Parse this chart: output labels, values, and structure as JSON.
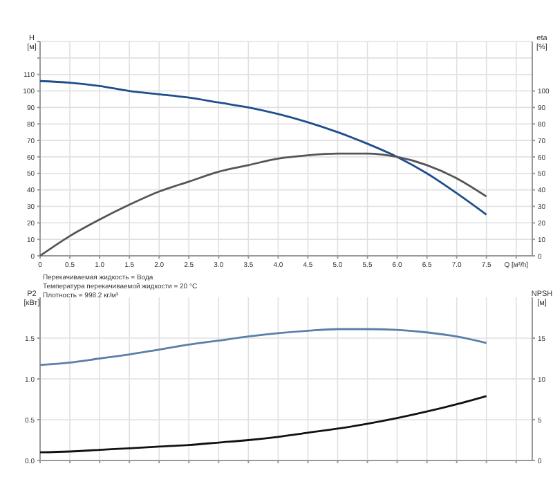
{
  "chart_data": [
    {
      "type": "line",
      "xlabel": "Q [м³/h]",
      "ylabel": "H [м]",
      "y2label": "eta [%]",
      "x": [
        0,
        0.5,
        1,
        1.5,
        2,
        2.5,
        3,
        3.5,
        4,
        4.5,
        5,
        5.5,
        6,
        6.5,
        7,
        7.5
      ],
      "xlim": [
        0,
        8.27
      ],
      "xticks": [
        0,
        {
          "value": 0.5,
          "label": "0.5"
        },
        {
          "value": 1,
          "label": "1.0"
        },
        {
          "value": 1.5,
          "label": "1.5"
        },
        {
          "value": 2,
          "label": "2.0"
        },
        {
          "value": 2.5,
          "label": "2.5"
        },
        {
          "value": 3,
          "label": "3.0"
        },
        {
          "value": 3.5,
          "label": "3.5"
        },
        {
          "value": 4,
          "label": "4.0"
        },
        {
          "value": 4.5,
          "label": "4.5"
        },
        {
          "value": 5,
          "label": "5.0"
        },
        {
          "value": 5.5,
          "label": "5.5"
        },
        {
          "value": 6,
          "label": "6.0"
        },
        {
          "value": 6.5,
          "label": "6.5"
        },
        {
          "value": 7,
          "label": "7.0"
        },
        {
          "value": 7.5,
          "label": "7.5"
        },
        {
          "value": 8,
          "label": null
        }
      ],
      "ylim": [
        0,
        130
      ],
      "yticks": [
        0,
        10,
        20,
        30,
        40,
        50,
        60,
        70,
        80,
        90,
        100,
        110,
        {
          "value": 120,
          "label": null
        },
        {
          "value": 130,
          "label": null
        }
      ],
      "y2lim": [
        0,
        130
      ],
      "y2ticks": [
        0,
        10,
        20,
        30,
        40,
        50,
        60,
        70,
        80,
        90,
        100
      ],
      "grid": true,
      "marker": "none",
      "line_style": "solid",
      "series": [
        {
          "color": "#1f4e8c",
          "values": [
            106,
            105,
            103,
            100,
            98,
            96,
            93,
            90,
            86,
            81,
            75,
            68,
            60,
            50,
            38,
            25
          ]
        },
        {
          "color": "#555555",
          "axis": "y2",
          "values": [
            0,
            12,
            22,
            31,
            39,
            45,
            51,
            55,
            59,
            61,
            62,
            62,
            60,
            55,
            47,
            36
          ]
        }
      ],
      "annotations": [
        "Перекачиваемая жидкость = Вода",
        "Температура перекачиваемой жидкости = 20 °C",
        "Плотность = 998.2 кг/м³"
      ]
    },
    {
      "type": "line",
      "ylabel": "P2 [кВт]",
      "y2label": "NPSH [м]",
      "x": [
        0,
        0.5,
        1,
        1.5,
        2,
        2.5,
        3,
        3.5,
        4,
        4.5,
        5,
        5.5,
        6,
        6.5,
        7,
        7.5
      ],
      "xlim": [
        0,
        8.27
      ],
      "xticks": [
        {
          "value": 0,
          "label": null
        },
        {
          "value": 0.5,
          "label": null
        },
        {
          "value": 1,
          "label": null
        },
        {
          "value": 1.5,
          "label": null
        },
        {
          "value": 2,
          "label": null
        },
        {
          "value": 2.5,
          "label": null
        },
        {
          "value": 3,
          "label": null
        },
        {
          "value": 3.5,
          "label": null
        },
        {
          "value": 4,
          "label": null
        },
        {
          "value": 4.5,
          "label": null
        },
        {
          "value": 5,
          "label": null
        },
        {
          "value": 5.5,
          "label": null
        },
        {
          "value": 6,
          "label": null
        },
        {
          "value": 6.5,
          "label": null
        },
        {
          "value": 7,
          "label": null
        },
        {
          "value": 7.5,
          "label": null
        },
        {
          "value": 8,
          "label": null
        }
      ],
      "ylim": [
        0,
        2
      ],
      "yticks": [
        {
          "value": 0,
          "label": "0.0"
        },
        {
          "value": 0.5,
          "label": "0.5"
        },
        {
          "value": 1,
          "label": "1.0"
        },
        {
          "value": 1.5,
          "label": "1.5"
        }
      ],
      "y2lim": [
        0,
        20
      ],
      "y2ticks": [
        0,
        5,
        10,
        15
      ],
      "grid": true,
      "marker": "none",
      "line_style": "solid",
      "tick_labels": "y",
      "series": [
        {
          "color": "#5a7fa8",
          "values": [
            1.17,
            1.2,
            1.25,
            1.3,
            1.36,
            1.42,
            1.47,
            1.52,
            1.56,
            1.59,
            1.61,
            1.61,
            1.6,
            1.57,
            1.52,
            1.44
          ]
        },
        {
          "color": "#111111",
          "axis": "y2",
          "values": [
            1,
            1.1,
            1.3,
            1.5,
            1.7,
            1.9,
            2.2,
            2.5,
            2.9,
            3.4,
            3.9,
            4.5,
            5.2,
            6,
            6.9,
            7.9
          ]
        }
      ]
    }
  ]
}
